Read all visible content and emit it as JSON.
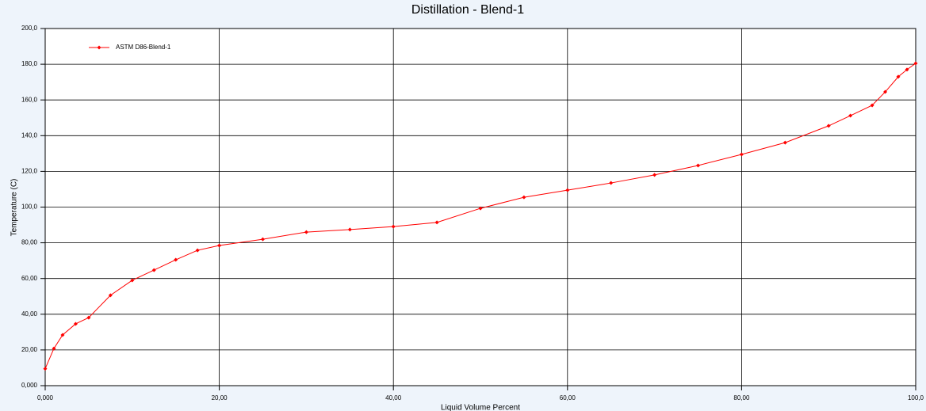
{
  "chart_data": {
    "type": "line",
    "title": "Distillation - Blend-1",
    "x_label": "Liquid Volume Percent",
    "y_label": "Temperature (C)",
    "xlim": [
      0,
      100
    ],
    "ylim": [
      0,
      200
    ],
    "xticks": [
      {
        "value": 0,
        "label": "0,000"
      },
      {
        "value": 20,
        "label": "20,00"
      },
      {
        "value": 40,
        "label": "40,00"
      },
      {
        "value": 60,
        "label": "60,00"
      },
      {
        "value": 80,
        "label": "80,00"
      },
      {
        "value": 100,
        "label": "100,0"
      }
    ],
    "yticks": [
      {
        "value": 0,
        "label": "0,000"
      },
      {
        "value": 20,
        "label": "20,00"
      },
      {
        "value": 40,
        "label": "40,00"
      },
      {
        "value": 60,
        "label": "60,00"
      },
      {
        "value": 80,
        "label": "80,00"
      },
      {
        "value": 100,
        "label": "100,0"
      },
      {
        "value": 120,
        "label": "120,0"
      },
      {
        "value": 140,
        "label": "140,0"
      },
      {
        "value": 160,
        "label": "160,0"
      },
      {
        "value": 180,
        "label": "180,0"
      },
      {
        "value": 200,
        "label": "200,0"
      }
    ],
    "grid": true,
    "legend": "upper left",
    "x": [
      0,
      1,
      2,
      3.5,
      5,
      7.5,
      10,
      12.5,
      15,
      17.5,
      20,
      25,
      30,
      35,
      40,
      45,
      50,
      55,
      60,
      65,
      70,
      75,
      80,
      85,
      90,
      92.5,
      95,
      96.5,
      98,
      99,
      100
    ],
    "series": [
      {
        "name": "ASTM D86-Blend-1",
        "color": "#ff0000",
        "values": [
          9.5,
          20.8,
          28.4,
          34.6,
          38.1,
          50.6,
          59.0,
          64.7,
          70.5,
          75.8,
          78.5,
          82.0,
          86.0,
          87.4,
          89.1,
          91.4,
          99.3,
          105.5,
          109.5,
          113.5,
          118.0,
          123.3,
          129.5,
          136.1,
          145.5,
          151.2,
          157.0,
          164.5,
          173.0,
          177.0,
          180.5
        ]
      }
    ]
  }
}
